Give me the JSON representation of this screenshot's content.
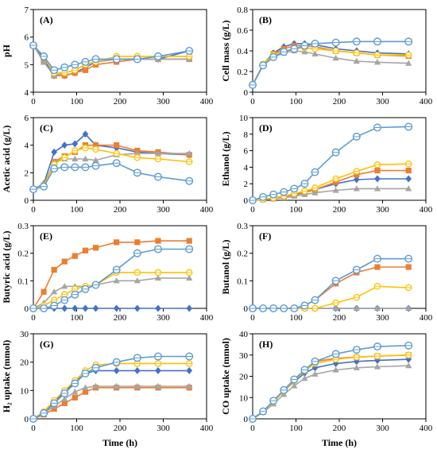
{
  "figure": {
    "colors": {
      "blue_diamond": "#4472C4",
      "orange_square": "#ED7D31",
      "gray_triangle": "#A5A5A5",
      "yellow_circle": "#FFC000",
      "lightblue_circle": "#5B9BD5"
    }
  },
  "chart_data": [
    {
      "id": "A",
      "type": "line",
      "panel_label": "(A)",
      "xlabel": "",
      "ylabel": "pH",
      "xlim": [
        0,
        400
      ],
      "ylim": [
        4,
        7
      ],
      "xticks": [
        "0",
        "100",
        "200",
        "300",
        "400"
      ],
      "yticks": [
        "4",
        "5",
        "6",
        "7"
      ],
      "x": [
        0,
        24,
        48,
        72,
        96,
        120,
        144,
        192,
        240,
        288,
        360
      ],
      "series": [
        {
          "marker": "diamond",
          "color": "#4472C4",
          "values": [
            5.7,
            5.2,
            4.6,
            4.6,
            4.7,
            4.9,
            5.1,
            5.2,
            5.2,
            5.2,
            5.5
          ]
        },
        {
          "marker": "square",
          "color": "#ED7D31",
          "values": [
            5.7,
            5.1,
            4.6,
            4.6,
            4.7,
            4.8,
            5.0,
            5.1,
            5.2,
            5.2,
            5.2
          ]
        },
        {
          "marker": "triangle",
          "color": "#A5A5A5",
          "values": [
            5.7,
            5.1,
            4.6,
            4.7,
            4.8,
            5.0,
            5.1,
            5.2,
            5.2,
            5.2,
            5.2
          ]
        },
        {
          "marker": "circle-x",
          "color": "#FFC000",
          "values": [
            5.7,
            5.3,
            4.7,
            4.7,
            4.8,
            5.0,
            5.1,
            5.3,
            5.3,
            5.3,
            5.3
          ]
        },
        {
          "marker": "circle-open",
          "color": "#5B9BD5",
          "values": [
            5.7,
            5.3,
            4.8,
            4.9,
            5.0,
            5.1,
            5.2,
            5.2,
            5.2,
            5.3,
            5.5
          ]
        }
      ]
    },
    {
      "id": "B",
      "type": "line",
      "panel_label": "(B)",
      "xlabel": "",
      "ylabel": "Cell mass (g/L)",
      "xlim": [
        0,
        400
      ],
      "ylim": [
        0,
        0.8
      ],
      "xticks": [
        "0",
        "100",
        "200",
        "300",
        "400"
      ],
      "yticks": [
        "0",
        "0.2",
        "0.4",
        "0.6",
        "0.8"
      ],
      "x": [
        0,
        24,
        48,
        72,
        96,
        120,
        144,
        192,
        240,
        288,
        360
      ],
      "series": [
        {
          "marker": "diamond",
          "color": "#4472C4",
          "values": [
            0.07,
            0.27,
            0.38,
            0.44,
            0.47,
            0.47,
            0.46,
            0.42,
            0.4,
            0.38,
            0.37
          ]
        },
        {
          "marker": "square",
          "color": "#ED7D31",
          "values": [
            0.07,
            0.27,
            0.37,
            0.42,
            0.45,
            0.45,
            0.44,
            0.4,
            0.38,
            0.36,
            0.35
          ]
        },
        {
          "marker": "triangle",
          "color": "#A5A5A5",
          "values": [
            0.07,
            0.26,
            0.34,
            0.38,
            0.4,
            0.39,
            0.37,
            0.33,
            0.3,
            0.29,
            0.28
          ]
        },
        {
          "marker": "circle-x",
          "color": "#FFC000",
          "values": [
            0.07,
            0.27,
            0.36,
            0.4,
            0.42,
            0.43,
            0.42,
            0.4,
            0.38,
            0.36,
            0.36
          ]
        },
        {
          "marker": "circle-open",
          "color": "#5B9BD5",
          "values": [
            0.07,
            0.26,
            0.34,
            0.39,
            0.42,
            0.45,
            0.47,
            0.48,
            0.49,
            0.49,
            0.49
          ]
        }
      ]
    },
    {
      "id": "C",
      "type": "line",
      "panel_label": "(C)",
      "xlabel": "",
      "ylabel": "Acetic acid (g/L)",
      "xlim": [
        0,
        400
      ],
      "ylim": [
        0,
        6
      ],
      "xticks": [
        "0",
        "100",
        "200",
        "300",
        "400"
      ],
      "yticks": [
        "0",
        "2",
        "4",
        "6"
      ],
      "x": [
        0,
        24,
        48,
        72,
        96,
        120,
        144,
        192,
        240,
        288,
        360
      ],
      "series": [
        {
          "marker": "diamond",
          "color": "#4472C4",
          "values": [
            0.8,
            1.2,
            3.5,
            4.0,
            4.1,
            4.8,
            4.0,
            3.8,
            3.5,
            3.4,
            3.3
          ]
        },
        {
          "marker": "square",
          "color": "#ED7D31",
          "values": [
            0.8,
            1.1,
            2.8,
            3.2,
            3.5,
            4.0,
            4.0,
            4.0,
            3.6,
            3.5,
            3.3
          ]
        },
        {
          "marker": "triangle",
          "color": "#A5A5A5",
          "values": [
            0.8,
            1.1,
            2.8,
            3.0,
            3.0,
            3.0,
            2.9,
            3.3,
            3.4,
            3.4,
            3.4
          ]
        },
        {
          "marker": "circle-x",
          "color": "#FFC000",
          "values": [
            0.8,
            1.1,
            2.6,
            3.1,
            3.6,
            3.8,
            3.7,
            3.4,
            3.1,
            3.0,
            2.8
          ]
        },
        {
          "marker": "circle-open",
          "color": "#5B9BD5",
          "values": [
            0.8,
            1.0,
            2.3,
            2.4,
            2.4,
            2.4,
            2.5,
            2.7,
            2.0,
            1.7,
            1.4
          ]
        }
      ]
    },
    {
      "id": "D",
      "type": "line",
      "panel_label": "(D)",
      "xlabel": "",
      "ylabel": "Ethanol (g/L)",
      "xlim": [
        0,
        400
      ],
      "ylim": [
        0,
        10
      ],
      "xticks": [
        "0",
        "100",
        "200",
        "300",
        "400"
      ],
      "yticks": [
        "0",
        "2",
        "4",
        "6",
        "8",
        "10"
      ],
      "x": [
        0,
        24,
        48,
        72,
        96,
        120,
        144,
        192,
        240,
        288,
        360
      ],
      "series": [
        {
          "marker": "diamond",
          "color": "#4472C4",
          "values": [
            0.0,
            0.1,
            0.3,
            0.5,
            0.7,
            1.0,
            1.3,
            2.0,
            2.5,
            2.6,
            2.6
          ]
        },
        {
          "marker": "square",
          "color": "#ED7D31",
          "values": [
            0.0,
            0.1,
            0.2,
            0.4,
            0.6,
            0.9,
            1.3,
            2.2,
            3.1,
            3.6,
            3.6
          ]
        },
        {
          "marker": "triangle",
          "color": "#A5A5A5",
          "values": [
            0.0,
            0.1,
            0.2,
            0.3,
            0.5,
            0.7,
            0.9,
            1.2,
            1.4,
            1.4,
            1.4
          ]
        },
        {
          "marker": "circle-x",
          "color": "#FFC000",
          "values": [
            0.0,
            0.1,
            0.3,
            0.5,
            0.8,
            1.1,
            1.5,
            2.6,
            3.5,
            4.3,
            4.4
          ]
        },
        {
          "marker": "circle-open",
          "color": "#5B9BD5",
          "values": [
            0.0,
            0.4,
            0.7,
            1.0,
            1.4,
            2.0,
            3.4,
            5.8,
            7.7,
            8.8,
            8.9
          ]
        }
      ]
    },
    {
      "id": "E",
      "type": "line",
      "panel_label": "(E)",
      "xlabel": "",
      "ylabel": "Butyric acid (g/L)",
      "xlim": [
        0,
        400
      ],
      "ylim": [
        0,
        0.3
      ],
      "xticks": [
        "0",
        "100",
        "200",
        "300",
        "400"
      ],
      "yticks": [
        "0",
        "0.1",
        "0.2",
        "0.3"
      ],
      "x": [
        0,
        24,
        48,
        72,
        96,
        120,
        144,
        192,
        240,
        288,
        360
      ],
      "series": [
        {
          "marker": "diamond",
          "color": "#4472C4",
          "values": [
            0.0,
            0.0,
            0.0,
            0.0,
            0.0,
            0.0,
            0.0,
            0.0,
            0.0,
            0.0,
            0.0
          ]
        },
        {
          "marker": "square",
          "color": "#ED7D31",
          "values": [
            0.0,
            0.06,
            0.14,
            0.17,
            0.19,
            0.21,
            0.22,
            0.24,
            0.24,
            0.245,
            0.245
          ]
        },
        {
          "marker": "triangle",
          "color": "#A5A5A5",
          "values": [
            0.0,
            0.02,
            0.06,
            0.08,
            0.08,
            0.08,
            0.085,
            0.1,
            0.1,
            0.11,
            0.11
          ]
        },
        {
          "marker": "circle-x",
          "color": "#FFC000",
          "values": [
            0.0,
            0.01,
            0.03,
            0.05,
            0.07,
            0.08,
            0.085,
            0.13,
            0.13,
            0.13,
            0.13
          ]
        },
        {
          "marker": "circle-open",
          "color": "#5B9BD5",
          "values": [
            0.0,
            0.0,
            0.01,
            0.03,
            0.05,
            0.07,
            0.085,
            0.14,
            0.2,
            0.215,
            0.215
          ]
        }
      ]
    },
    {
      "id": "F",
      "type": "line",
      "panel_label": "(F)",
      "xlabel": "",
      "ylabel": "Butanol (g/L)",
      "xlim": [
        0,
        400
      ],
      "ylim": [
        0,
        0.3
      ],
      "xticks": [
        "0",
        "100",
        "200",
        "300",
        "400"
      ],
      "yticks": [
        "0",
        "0.1",
        "0.2",
        "0.3"
      ],
      "x": [
        0,
        24,
        48,
        72,
        96,
        120,
        144,
        192,
        240,
        288,
        360
      ],
      "series": [
        {
          "marker": "diamond",
          "color": "#4472C4",
          "values": [
            0.0,
            0.0,
            0.0,
            0.0,
            0.0,
            0.0,
            0.0,
            0.0,
            0.0,
            0.0,
            0.0
          ]
        },
        {
          "marker": "square",
          "color": "#ED7D31",
          "values": [
            0.0,
            0.0,
            0.0,
            0.0,
            0.0,
            0.01,
            0.03,
            0.09,
            0.13,
            0.15,
            0.15
          ]
        },
        {
          "marker": "triangle",
          "color": "#A5A5A5",
          "values": [
            0.0,
            0.0,
            0.0,
            0.0,
            0.0,
            0.0,
            0.0,
            0.0,
            0.0,
            0.0,
            0.0
          ]
        },
        {
          "marker": "circle-x",
          "color": "#FFC000",
          "values": [
            0.0,
            0.0,
            0.0,
            0.0,
            0.0,
            0.0,
            0.0,
            0.02,
            0.04,
            0.08,
            0.075
          ]
        },
        {
          "marker": "circle-open",
          "color": "#5B9BD5",
          "values": [
            0.0,
            0.0,
            0.0,
            0.0,
            0.0,
            0.01,
            0.03,
            0.1,
            0.14,
            0.18,
            0.18
          ]
        }
      ]
    },
    {
      "id": "G",
      "type": "line",
      "panel_label": "(G)",
      "xlabel": "Time (h)",
      "ylabel": "H₂ uptake (mmol)",
      "xlim": [
        0,
        400
      ],
      "ylim": [
        0,
        30
      ],
      "xticks": [
        "0",
        "100",
        "200",
        "300",
        "400"
      ],
      "yticks": [
        "0",
        "10",
        "20",
        "30"
      ],
      "x": [
        0,
        24,
        48,
        72,
        96,
        120,
        144,
        192,
        240,
        288,
        360
      ],
      "series": [
        {
          "marker": "diamond",
          "color": "#4472C4",
          "values": [
            0.0,
            2.5,
            6.0,
            9.5,
            13.0,
            16.0,
            17.0,
            17.0,
            17.0,
            17.0,
            17.0
          ]
        },
        {
          "marker": "square",
          "color": "#ED7D31",
          "values": [
            0.0,
            1.5,
            3.5,
            5.5,
            7.5,
            9.5,
            11.0,
            11.0,
            11.0,
            11.0,
            11.0
          ]
        },
        {
          "marker": "triangle",
          "color": "#A5A5A5",
          "values": [
            0.0,
            2.0,
            4.5,
            7.0,
            9.5,
            11.0,
            11.5,
            11.5,
            11.5,
            11.5,
            11.5
          ]
        },
        {
          "marker": "circle-x",
          "color": "#FFC000",
          "values": [
            0.0,
            2.5,
            6.5,
            10.0,
            13.5,
            17.0,
            19.0,
            19.5,
            19.5,
            19.5,
            19.5
          ]
        },
        {
          "marker": "circle-open",
          "color": "#5B9BD5",
          "values": [
            0.0,
            2.0,
            5.5,
            9.0,
            12.5,
            16.0,
            18.0,
            20.0,
            21.5,
            22.0,
            22.0
          ]
        }
      ]
    },
    {
      "id": "H",
      "type": "line",
      "panel_label": "(H)",
      "xlabel": "Time (h)",
      "ylabel": "CO uptake (mmol)",
      "xlim": [
        0,
        400
      ],
      "ylim": [
        0,
        40
      ],
      "xticks": [
        "0",
        "100",
        "200",
        "300",
        "400"
      ],
      "yticks": [
        "0",
        "10",
        "20",
        "30",
        "40"
      ],
      "x": [
        0,
        24,
        48,
        72,
        96,
        120,
        144,
        192,
        240,
        288,
        360
      ],
      "series": [
        {
          "marker": "diamond",
          "color": "#4472C4",
          "values": [
            0.0,
            3.5,
            8.0,
            13.0,
            17.5,
            21.5,
            24.0,
            26.0,
            27.0,
            27.5,
            28.0
          ]
        },
        {
          "marker": "square",
          "color": "#ED7D31",
          "values": [
            0.0,
            3.5,
            8.5,
            13.5,
            18.5,
            23.0,
            27.0,
            28.5,
            29.0,
            29.5,
            30.0
          ]
        },
        {
          "marker": "triangle",
          "color": "#A5A5A5",
          "values": [
            0.0,
            3.0,
            7.0,
            11.5,
            15.5,
            19.0,
            21.0,
            23.0,
            24.0,
            24.5,
            25.0
          ]
        },
        {
          "marker": "circle-x",
          "color": "#FFC000",
          "values": [
            0.0,
            3.5,
            8.0,
            13.0,
            18.0,
            22.5,
            26.0,
            28.0,
            29.0,
            29.5,
            30.0
          ]
        },
        {
          "marker": "circle-open",
          "color": "#5B9BD5",
          "values": [
            0.0,
            3.5,
            8.5,
            13.5,
            18.5,
            23.0,
            27.0,
            30.5,
            32.5,
            34.0,
            34.5
          ]
        }
      ]
    }
  ]
}
